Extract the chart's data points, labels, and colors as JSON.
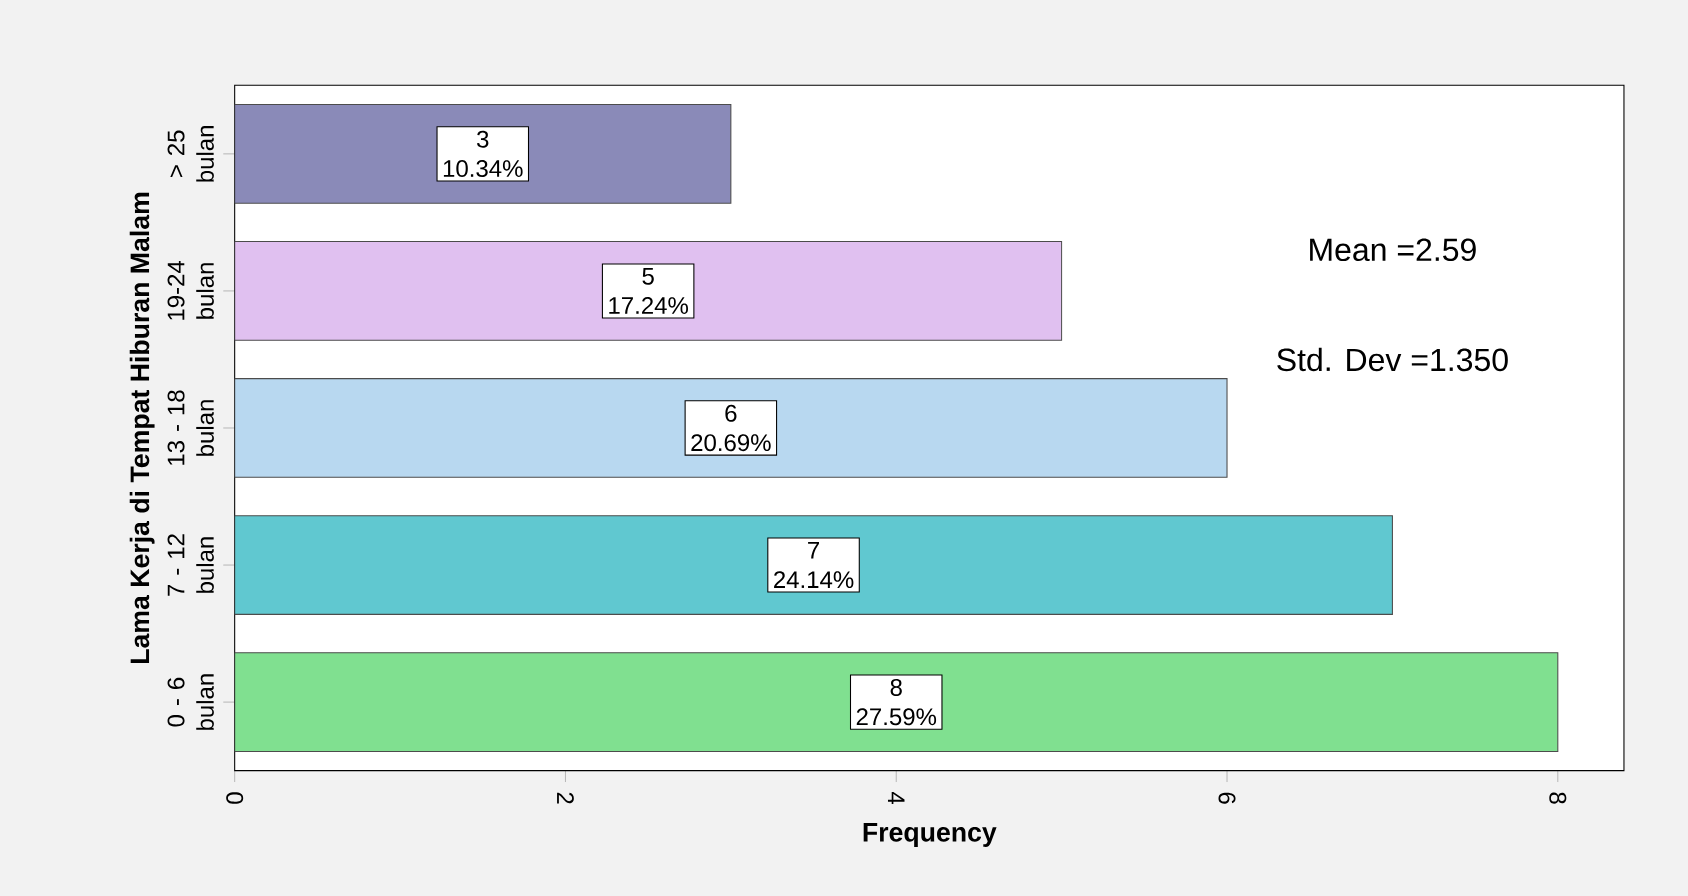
{
  "chart_data": {
    "type": "bar",
    "orientation": "horizontal",
    "ylabel": "Lama Kerja di Tempat Hiburan Malam",
    "xlabel": "Frequency",
    "categories": [
      "> 25 bulan",
      "19-24 bulan",
      "13 - 18 bulan",
      "7 - 12 bulan",
      "0 - 6 bulan"
    ],
    "values": [
      3,
      5,
      6,
      7,
      8
    ],
    "colors": [
      "#8a8ab8",
      "#e0c0f0",
      "#b8d8f0",
      "#60c8d0",
      "#80e090"
    ],
    "value_labels": [
      "3 10.34%",
      "5 17.24%",
      "6 20.69%",
      "7 24.14%",
      "8 27.59%"
    ],
    "xlim": [
      0,
      8.4
    ],
    "xticks": [
      0,
      2,
      4,
      6,
      8
    ],
    "annotations": [
      {
        "text": "Mean =2.59"
      },
      {
        "text": "Std. Dev =1.350"
      }
    ]
  }
}
